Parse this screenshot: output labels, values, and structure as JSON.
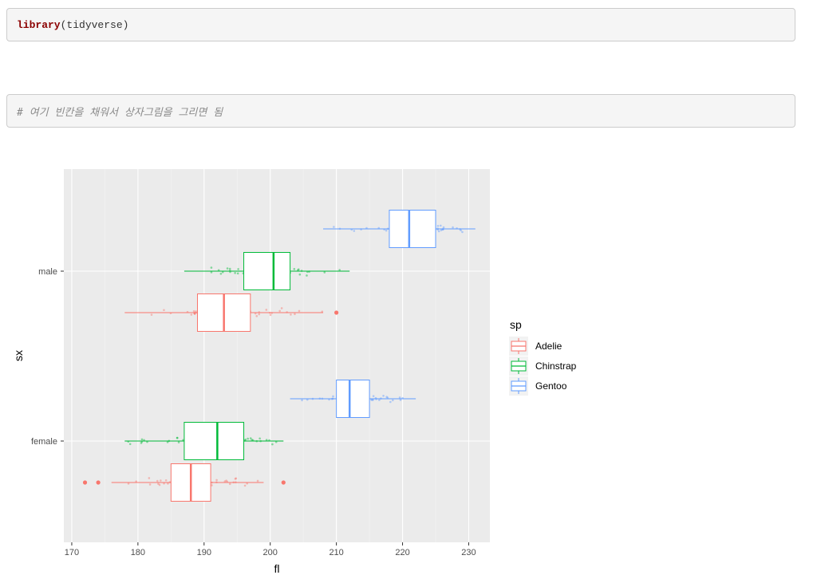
{
  "code_cells": {
    "cell1": {
      "keyword": "library",
      "rest": "(tidyverse)"
    },
    "cell2": {
      "comment": "# 여기 빈칸을 채워서 상자그림을 그리면 됨"
    }
  },
  "colors": {
    "panel_bg": "#ebebeb",
    "grid": "#ffffff",
    "Adelie": "#f8766d",
    "Chinstrap": "#00ba38",
    "Gentoo": "#619cff"
  },
  "chart_data": {
    "type": "boxplot",
    "xlabel": "fl",
    "ylabel": "sx",
    "xlim": [
      168.8,
      233.2
    ],
    "x_ticks": [
      170,
      180,
      190,
      200,
      210,
      220,
      230
    ],
    "y_categories": [
      "female",
      "male"
    ],
    "legend": {
      "title": "sp",
      "position": "right",
      "entries": [
        "Adelie",
        "Chinstrap",
        "Gentoo"
      ]
    },
    "grid": true,
    "boxes": [
      {
        "sx": "male",
        "sp": "Adelie",
        "whisker_low": 178,
        "q1": 189,
        "median": 193,
        "q3": 197,
        "whisker_high": 208,
        "outliers": [
          210
        ]
      },
      {
        "sx": "male",
        "sp": "Chinstrap",
        "whisker_low": 187,
        "q1": 196,
        "median": 200.5,
        "q3": 203,
        "whisker_high": 212,
        "outliers": []
      },
      {
        "sx": "male",
        "sp": "Gentoo",
        "whisker_low": 208,
        "q1": 218,
        "median": 221,
        "q3": 225,
        "whisker_high": 231,
        "outliers": []
      },
      {
        "sx": "female",
        "sp": "Adelie",
        "whisker_low": 176,
        "q1": 185,
        "median": 188,
        "q3": 191,
        "whisker_high": 199,
        "outliers": [
          172,
          174,
          202
        ]
      },
      {
        "sx": "female",
        "sp": "Chinstrap",
        "whisker_low": 178,
        "q1": 187,
        "median": 192,
        "q3": 196,
        "whisker_high": 202,
        "outliers": []
      },
      {
        "sx": "female",
        "sp": "Gentoo",
        "whisker_low": 203,
        "q1": 210,
        "median": 212,
        "q3": 215,
        "whisker_high": 222,
        "outliers": []
      }
    ]
  }
}
